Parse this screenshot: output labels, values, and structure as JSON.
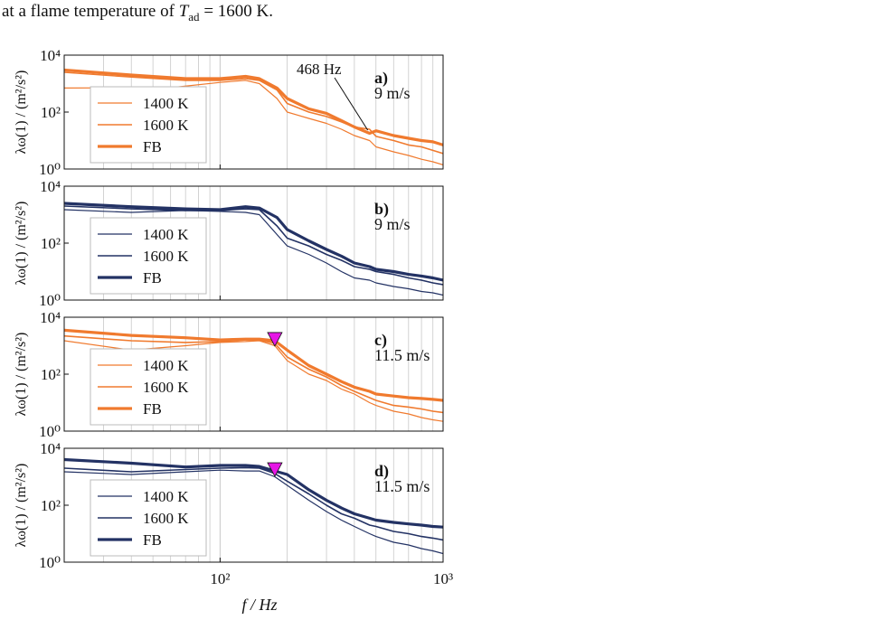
{
  "caption": {
    "prefix": "at a flame temperature of ",
    "symbol": "T",
    "subscript": "ad",
    "suffix": " = 1600 K."
  },
  "figure": {
    "xlabel": "f / Hz",
    "ylabel": "λω(1) / (m²/s²)",
    "x_ticks": [
      "10²",
      "10³"
    ],
    "y_ticks": [
      "10⁴",
      "10²",
      "10⁰"
    ],
    "legend": [
      "1400 K",
      "1600 K",
      "FB"
    ],
    "annotation_468": "468 Hz"
  },
  "chart_data": [
    {
      "type": "line",
      "panel": "a)",
      "velocity": "9 m/s",
      "color": "#f07a2e",
      "xscale": "log",
      "yscale": "log",
      "xlim": [
        20,
        1000
      ],
      "ylim": [
        1,
        10000
      ],
      "grid": true,
      "legend_position": "lower-left",
      "annotation": {
        "text": "468 Hz",
        "x": 468
      },
      "series": [
        {
          "name": "1400 K",
          "width": 1.2,
          "points": [
            [
              20,
              700
            ],
            [
              60,
              720
            ],
            [
              100,
              1100
            ],
            [
              130,
              1300
            ],
            [
              150,
              1000
            ],
            [
              180,
              300
            ],
            [
              200,
              100
            ],
            [
              250,
              60
            ],
            [
              300,
              40
            ],
            [
              350,
              25
            ],
            [
              400,
              15
            ],
            [
              468,
              10
            ],
            [
              500,
              6
            ],
            [
              600,
              4
            ],
            [
              700,
              3
            ],
            [
              800,
              2.2
            ],
            [
              900,
              1.8
            ],
            [
              1000,
              1.4
            ]
          ]
        },
        {
          "name": "1600 K",
          "width": 1.6,
          "points": [
            [
              20,
              2500
            ],
            [
              40,
              1700
            ],
            [
              70,
              1300
            ],
            [
              100,
              1300
            ],
            [
              130,
              1500
            ],
            [
              150,
              1300
            ],
            [
              180,
              600
            ],
            [
              200,
              200
            ],
            [
              250,
              100
            ],
            [
              300,
              70
            ],
            [
              350,
              45
            ],
            [
              400,
              30
            ],
            [
              468,
              25
            ],
            [
              500,
              14
            ],
            [
              600,
              10
            ],
            [
              700,
              7
            ],
            [
              800,
              6
            ],
            [
              900,
              4.5
            ],
            [
              1000,
              3.5
            ]
          ]
        },
        {
          "name": "FB",
          "width": 3.2,
          "points": [
            [
              20,
              3000
            ],
            [
              40,
              2000
            ],
            [
              70,
              1500
            ],
            [
              100,
              1500
            ],
            [
              130,
              1800
            ],
            [
              150,
              1500
            ],
            [
              180,
              700
            ],
            [
              200,
              300
            ],
            [
              250,
              130
            ],
            [
              300,
              90
            ],
            [
              350,
              50
            ],
            [
              400,
              30
            ],
            [
              468,
              18
            ],
            [
              500,
              22
            ],
            [
              600,
              15
            ],
            [
              700,
              12
            ],
            [
              800,
              10
            ],
            [
              900,
              9
            ],
            [
              1000,
              7
            ]
          ]
        }
      ]
    },
    {
      "type": "line",
      "panel": "b)",
      "velocity": "9 m/s",
      "color": "#233264",
      "xscale": "log",
      "yscale": "log",
      "xlim": [
        20,
        1000
      ],
      "ylim": [
        1,
        10000
      ],
      "grid": true,
      "legend_position": "lower-left",
      "series": [
        {
          "name": "1400 K",
          "width": 1.2,
          "points": [
            [
              20,
              1500
            ],
            [
              40,
              1200
            ],
            [
              70,
              1400
            ],
            [
              100,
              1300
            ],
            [
              130,
              1200
            ],
            [
              150,
              1000
            ],
            [
              180,
              200
            ],
            [
              200,
              80
            ],
            [
              250,
              40
            ],
            [
              300,
              20
            ],
            [
              350,
              10
            ],
            [
              400,
              6
            ],
            [
              468,
              5
            ],
            [
              500,
              4
            ],
            [
              600,
              3
            ],
            [
              700,
              2.5
            ],
            [
              800,
              2
            ],
            [
              900,
              1.8
            ],
            [
              1000,
              1.5
            ]
          ]
        },
        {
          "name": "1600 K",
          "width": 1.6,
          "points": [
            [
              20,
              2000
            ],
            [
              40,
              1600
            ],
            [
              70,
              1400
            ],
            [
              100,
              1400
            ],
            [
              130,
              1600
            ],
            [
              150,
              1500
            ],
            [
              180,
              400
            ],
            [
              200,
              150
            ],
            [
              250,
              80
            ],
            [
              300,
              40
            ],
            [
              350,
              25
            ],
            [
              400,
              15
            ],
            [
              468,
              12
            ],
            [
              500,
              10
            ],
            [
              600,
              8
            ],
            [
              700,
              6
            ],
            [
              800,
              5
            ],
            [
              900,
              4
            ],
            [
              1000,
              3.5
            ]
          ]
        },
        {
          "name": "FB",
          "width": 3.2,
          "points": [
            [
              20,
              2500
            ],
            [
              40,
              1900
            ],
            [
              70,
              1600
            ],
            [
              100,
              1500
            ],
            [
              130,
              1900
            ],
            [
              150,
              1700
            ],
            [
              180,
              800
            ],
            [
              200,
              300
            ],
            [
              250,
              120
            ],
            [
              300,
              60
            ],
            [
              350,
              35
            ],
            [
              400,
              20
            ],
            [
              468,
              15
            ],
            [
              500,
              12
            ],
            [
              600,
              10
            ],
            [
              700,
              8
            ],
            [
              800,
              7
            ],
            [
              900,
              6
            ],
            [
              1000,
              5
            ]
          ]
        }
      ]
    },
    {
      "type": "line",
      "panel": "c)",
      "velocity": "11.5 m/s",
      "color": "#f07a2e",
      "xscale": "log",
      "yscale": "log",
      "xlim": [
        20,
        1000
      ],
      "ylim": [
        1,
        10000
      ],
      "grid": true,
      "legend_position": "lower-left",
      "marker": {
        "x": 176,
        "y": 1500,
        "shape": "triangle-down",
        "color": "#e617e6"
      },
      "series": [
        {
          "name": "1400 K",
          "width": 1.2,
          "points": [
            [
              20,
              1500
            ],
            [
              40,
              700
            ],
            [
              70,
              1000
            ],
            [
              100,
              1300
            ],
            [
              130,
              1400
            ],
            [
              150,
              1500
            ],
            [
              176,
              1000
            ],
            [
              200,
              300
            ],
            [
              250,
              100
            ],
            [
              300,
              60
            ],
            [
              350,
              30
            ],
            [
              400,
              20
            ],
            [
              468,
              10
            ],
            [
              500,
              8
            ],
            [
              600,
              5
            ],
            [
              700,
              4
            ],
            [
              800,
              3
            ],
            [
              900,
              2.5
            ],
            [
              1000,
              2.2
            ]
          ]
        },
        {
          "name": "1600 K",
          "width": 1.6,
          "points": [
            [
              20,
              2200
            ],
            [
              40,
              1500
            ],
            [
              70,
              1300
            ],
            [
              100,
              1400
            ],
            [
              130,
              1600
            ],
            [
              150,
              1600
            ],
            [
              176,
              1200
            ],
            [
              200,
              400
            ],
            [
              250,
              150
            ],
            [
              300,
              80
            ],
            [
              350,
              40
            ],
            [
              400,
              25
            ],
            [
              468,
              15
            ],
            [
              500,
              12
            ],
            [
              600,
              8
            ],
            [
              700,
              7
            ],
            [
              800,
              6
            ],
            [
              900,
              5
            ],
            [
              1000,
              4.5
            ]
          ]
        },
        {
          "name": "FB",
          "width": 3.2,
          "points": [
            [
              20,
              3500
            ],
            [
              40,
              2300
            ],
            [
              70,
              1900
            ],
            [
              100,
              1600
            ],
            [
              130,
              1700
            ],
            [
              150,
              1700
            ],
            [
              176,
              1500
            ],
            [
              200,
              700
            ],
            [
              250,
              200
            ],
            [
              300,
              100
            ],
            [
              350,
              55
            ],
            [
              400,
              35
            ],
            [
              468,
              25
            ],
            [
              500,
              20
            ],
            [
              600,
              17
            ],
            [
              700,
              15
            ],
            [
              800,
              14
            ],
            [
              900,
              13
            ],
            [
              1000,
              12
            ]
          ]
        }
      ]
    },
    {
      "type": "line",
      "panel": "d)",
      "velocity": "11.5 m/s",
      "color": "#233264",
      "xscale": "log",
      "yscale": "log",
      "xlim": [
        20,
        1000
      ],
      "ylim": [
        1,
        10000
      ],
      "grid": true,
      "legend_position": "lower-left",
      "marker": {
        "x": 176,
        "y": 1600,
        "shape": "triangle-down",
        "color": "#e617e6"
      },
      "series": [
        {
          "name": "1400 K",
          "width": 1.2,
          "points": [
            [
              20,
              1500
            ],
            [
              40,
              1200
            ],
            [
              70,
              1500
            ],
            [
              100,
              1700
            ],
            [
              130,
              1600
            ],
            [
              150,
              1600
            ],
            [
              176,
              1000
            ],
            [
              200,
              500
            ],
            [
              250,
              150
            ],
            [
              300,
              60
            ],
            [
              350,
              30
            ],
            [
              400,
              18
            ],
            [
              468,
              10
            ],
            [
              500,
              8
            ],
            [
              600,
              5
            ],
            [
              700,
              4
            ],
            [
              800,
              3
            ],
            [
              900,
              2.5
            ],
            [
              1000,
              2
            ]
          ]
        },
        {
          "name": "1600 K",
          "width": 1.6,
          "points": [
            [
              20,
              2000
            ],
            [
              40,
              1500
            ],
            [
              70,
              1800
            ],
            [
              100,
              2000
            ],
            [
              130,
              2100
            ],
            [
              150,
              2000
            ],
            [
              176,
              1300
            ],
            [
              200,
              700
            ],
            [
              250,
              250
            ],
            [
              300,
              100
            ],
            [
              350,
              50
            ],
            [
              400,
              35
            ],
            [
              468,
              20
            ],
            [
              500,
              18
            ],
            [
              600,
              12
            ],
            [
              700,
              10
            ],
            [
              800,
              8
            ],
            [
              900,
              7
            ],
            [
              1000,
              6
            ]
          ]
        },
        {
          "name": "FB",
          "width": 3.2,
          "points": [
            [
              20,
              4000
            ],
            [
              40,
              3000
            ],
            [
              70,
              2200
            ],
            [
              100,
              2500
            ],
            [
              130,
              2500
            ],
            [
              150,
              2300
            ],
            [
              176,
              1600
            ],
            [
              200,
              1200
            ],
            [
              250,
              350
            ],
            [
              300,
              150
            ],
            [
              350,
              80
            ],
            [
              400,
              50
            ],
            [
              468,
              35
            ],
            [
              500,
              30
            ],
            [
              600,
              25
            ],
            [
              700,
              22
            ],
            [
              800,
              20
            ],
            [
              900,
              18
            ],
            [
              1000,
              17
            ]
          ]
        }
      ]
    }
  ]
}
